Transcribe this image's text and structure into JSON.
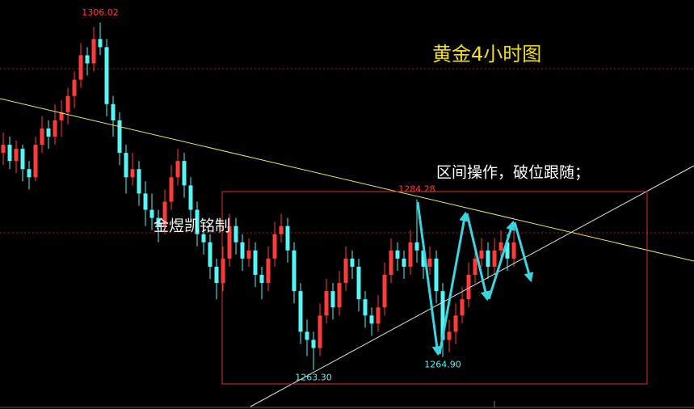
{
  "chart_data": {
    "type": "candlestick",
    "title": "黄金4小时图",
    "subtitle": "区间操作，破位跟随；",
    "watermark": "金煜凯铭制",
    "up_color": "#ff3b3b",
    "down_color": "#54f6f6",
    "ylim": [
      1258.5,
      1308.8
    ],
    "candles": [
      [
        1290,
        1292.5,
        1288.5,
        1291
      ],
      [
        1291,
        1292,
        1288,
        1289
      ],
      [
        1289,
        1291.5,
        1287.5,
        1290.5
      ],
      [
        1290.5,
        1291,
        1286.5,
        1288
      ],
      [
        1288,
        1289,
        1285.5,
        1287
      ],
      [
        1287,
        1292,
        1286.5,
        1291
      ],
      [
        1291,
        1294.5,
        1290,
        1293
      ],
      [
        1293,
        1294,
        1290.5,
        1292
      ],
      [
        1292,
        1296,
        1291,
        1294
      ],
      [
        1294,
        1296.5,
        1292,
        1295
      ],
      [
        1295,
        1298,
        1293.5,
        1297
      ],
      [
        1297,
        1300,
        1295.5,
        1299
      ],
      [
        1299,
        1303.5,
        1298,
        1302
      ],
      [
        1302,
        1303,
        1299.5,
        1301
      ],
      [
        1301,
        1305.5,
        1300,
        1304
      ],
      [
        1304,
        1306.02,
        1302,
        1303
      ],
      [
        1303,
        1304,
        1294.5,
        1296
      ],
      [
        1296,
        1297,
        1292,
        1294
      ],
      [
        1294,
        1295,
        1288.5,
        1290
      ],
      [
        1290,
        1291,
        1285,
        1287
      ],
      [
        1287,
        1290,
        1286,
        1288
      ],
      [
        1288,
        1289,
        1283.5,
        1285
      ],
      [
        1285,
        1286.5,
        1281,
        1283
      ],
      [
        1283,
        1285,
        1280.5,
        1282
      ],
      [
        1282,
        1283,
        1279,
        1281
      ],
      [
        1281,
        1285.5,
        1280,
        1284
      ],
      [
        1284,
        1288.5,
        1283,
        1287
      ],
      [
        1287,
        1290.5,
        1286,
        1289
      ],
      [
        1289,
        1290,
        1284.5,
        1286
      ],
      [
        1286,
        1287,
        1281.5,
        1283
      ],
      [
        1283,
        1284,
        1278.5,
        1280
      ],
      [
        1280,
        1281.5,
        1277.5,
        1279
      ],
      [
        1279,
        1280,
        1274.5,
        1276
      ],
      [
        1276,
        1277,
        1272,
        1274
      ],
      [
        1274,
        1278.5,
        1273,
        1277
      ],
      [
        1277,
        1282.5,
        1276,
        1281
      ],
      [
        1281,
        1282,
        1277.5,
        1279
      ],
      [
        1279,
        1280,
        1275.5,
        1277
      ],
      [
        1277,
        1279.5,
        1276,
        1278
      ],
      [
        1278,
        1279,
        1273.5,
        1275
      ],
      [
        1275,
        1276,
        1272,
        1274
      ],
      [
        1274,
        1278.5,
        1273,
        1277
      ],
      [
        1277,
        1281.5,
        1276,
        1280
      ],
      [
        1280,
        1282.5,
        1279,
        1281
      ],
      [
        1281,
        1282,
        1276.5,
        1278
      ],
      [
        1278,
        1279,
        1271.5,
        1273
      ],
      [
        1273,
        1274,
        1266.5,
        1268
      ],
      [
        1268,
        1269.5,
        1265,
        1267
      ],
      [
        1267,
        1268,
        1263.3,
        1266
      ],
      [
        1266,
        1271.5,
        1265,
        1270
      ],
      [
        1270,
        1274.5,
        1269,
        1273
      ],
      [
        1273,
        1274,
        1269.5,
        1271
      ],
      [
        1271,
        1275.5,
        1270,
        1274
      ],
      [
        1274,
        1278.5,
        1273,
        1277
      ],
      [
        1277,
        1278,
        1274.5,
        1276
      ],
      [
        1276,
        1277,
        1270.5,
        1272
      ],
      [
        1272,
        1273,
        1268.5,
        1270
      ],
      [
        1270,
        1271,
        1267.5,
        1269
      ],
      [
        1269,
        1272.5,
        1268,
        1271
      ],
      [
        1271,
        1276.5,
        1270,
        1275
      ],
      [
        1275,
        1279.5,
        1274,
        1278
      ],
      [
        1278,
        1279,
        1275.5,
        1277
      ],
      [
        1277,
        1278,
        1274.5,
        1276
      ],
      [
        1276,
        1280.5,
        1275,
        1279
      ],
      [
        1279,
        1284.28,
        1276.5,
        1278
      ],
      [
        1278,
        1279,
        1274.5,
        1276
      ],
      [
        1276,
        1278.5,
        1275,
        1277
      ],
      [
        1277,
        1278,
        1271.5,
        1273
      ],
      [
        1273,
        1274,
        1264.9,
        1267
      ],
      [
        1267,
        1269.5,
        1265.5,
        1268
      ],
      [
        1268,
        1271.5,
        1266.5,
        1270
      ],
      [
        1270,
        1273.5,
        1269,
        1272
      ],
      [
        1272,
        1276.5,
        1271,
        1275
      ],
      [
        1275,
        1278.5,
        1274,
        1277
      ],
      [
        1277,
        1279.5,
        1276,
        1278
      ],
      [
        1278,
        1279,
        1274.5,
        1276
      ],
      [
        1276,
        1279.5,
        1275,
        1278
      ],
      [
        1278,
        1280.5,
        1277,
        1279
      ],
      [
        1279,
        1280,
        1275.5,
        1277
      ],
      [
        1277,
        1280.5,
        1276,
        1279
      ]
    ],
    "price_labels": [
      {
        "value": 1306.02,
        "label": "1306.02"
      },
      {
        "value": 1284.28,
        "label": "1284.28"
      },
      {
        "value": 1264.9,
        "label": "1264.90"
      },
      {
        "value": 1263.3,
        "label": "1263.30"
      }
    ]
  }
}
